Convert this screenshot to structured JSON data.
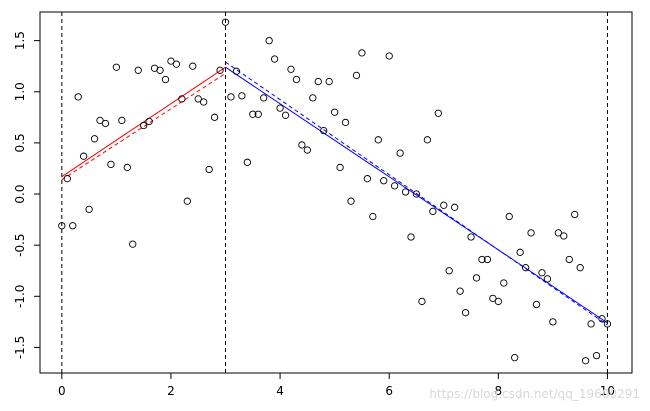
{
  "chart_data": {
    "type": "scatter",
    "xlim": [
      -0.4,
      10.45
    ],
    "ylim": [
      -1.75,
      1.78
    ],
    "x_ticks": [
      0,
      2,
      4,
      6,
      8,
      10
    ],
    "y_ticks": [
      -1.5,
      -1.0,
      -0.5,
      0.0,
      0.5,
      1.0,
      1.5
    ],
    "y_tick_labels": [
      "-1.5",
      "-1.0",
      "-0.5",
      "0.0",
      "0.5",
      "1.0",
      "1.5"
    ],
    "grid": false,
    "vlines": [
      {
        "x": 0,
        "style": "dashed",
        "color": "#000000"
      },
      {
        "x": 3,
        "style": "dashed",
        "color": "#000000"
      },
      {
        "x": 10,
        "style": "dashed",
        "color": "#000000"
      }
    ],
    "points": [
      [
        0.0,
        -0.31
      ],
      [
        0.1,
        0.15
      ],
      [
        0.2,
        -0.31
      ],
      [
        0.3,
        0.95
      ],
      [
        0.4,
        0.37
      ],
      [
        0.5,
        -0.15
      ],
      [
        0.6,
        0.54
      ],
      [
        0.7,
        0.72
      ],
      [
        0.8,
        0.69
      ],
      [
        0.9,
        0.29
      ],
      [
        1.0,
        1.24
      ],
      [
        1.1,
        0.72
      ],
      [
        1.2,
        0.26
      ],
      [
        1.3,
        -0.49
      ],
      [
        1.4,
        1.21
      ],
      [
        1.5,
        0.67
      ],
      [
        1.6,
        0.71
      ],
      [
        1.7,
        1.23
      ],
      [
        1.8,
        1.21
      ],
      [
        1.9,
        1.12
      ],
      [
        2.0,
        1.3
      ],
      [
        2.1,
        1.27
      ],
      [
        2.2,
        0.93
      ],
      [
        2.3,
        -0.07
      ],
      [
        2.4,
        1.25
      ],
      [
        2.5,
        0.93
      ],
      [
        2.6,
        0.9
      ],
      [
        2.7,
        0.24
      ],
      [
        2.8,
        0.75
      ],
      [
        2.9,
        1.21
      ],
      [
        3.0,
        1.68
      ],
      [
        3.1,
        0.95
      ],
      [
        3.2,
        1.2
      ],
      [
        3.3,
        0.96
      ],
      [
        3.4,
        0.31
      ],
      [
        3.5,
        0.78
      ],
      [
        3.6,
        0.78
      ],
      [
        3.7,
        0.94
      ],
      [
        3.8,
        1.5
      ],
      [
        3.9,
        1.32
      ],
      [
        4.0,
        0.84
      ],
      [
        4.1,
        0.77
      ],
      [
        4.2,
        1.22
      ],
      [
        4.3,
        1.12
      ],
      [
        4.4,
        0.48
      ],
      [
        4.5,
        0.43
      ],
      [
        4.6,
        0.94
      ],
      [
        4.7,
        1.1
      ],
      [
        4.8,
        0.62
      ],
      [
        4.9,
        1.1
      ],
      [
        5.0,
        0.8
      ],
      [
        5.1,
        0.26
      ],
      [
        5.2,
        0.7
      ],
      [
        5.3,
        -0.07
      ],
      [
        5.4,
        1.16
      ],
      [
        5.5,
        1.38
      ],
      [
        5.6,
        0.15
      ],
      [
        5.7,
        -0.22
      ],
      [
        5.8,
        0.53
      ],
      [
        5.9,
        0.13
      ],
      [
        6.0,
        1.35
      ],
      [
        6.1,
        0.08
      ],
      [
        6.2,
        0.4
      ],
      [
        6.3,
        0.02
      ],
      [
        6.4,
        -0.42
      ],
      [
        6.5,
        0.0
      ],
      [
        6.6,
        -1.05
      ],
      [
        6.7,
        0.53
      ],
      [
        6.8,
        -0.17
      ],
      [
        6.9,
        0.79
      ],
      [
        7.0,
        -0.11
      ],
      [
        7.1,
        -0.75
      ],
      [
        7.2,
        -0.13
      ],
      [
        7.3,
        -0.95
      ],
      [
        7.4,
        -1.16
      ],
      [
        7.5,
        -0.42
      ],
      [
        7.6,
        -0.82
      ],
      [
        7.7,
        -0.64
      ],
      [
        7.8,
        -0.64
      ],
      [
        7.9,
        -1.02
      ],
      [
        8.0,
        -1.05
      ],
      [
        8.1,
        -0.87
      ],
      [
        8.2,
        -0.22
      ],
      [
        8.3,
        -1.6
      ],
      [
        8.4,
        -0.57
      ],
      [
        8.5,
        -0.72
      ],
      [
        8.6,
        -0.38
      ],
      [
        8.7,
        -1.08
      ],
      [
        8.8,
        -0.77
      ],
      [
        8.9,
        -0.83
      ],
      [
        9.0,
        -1.25
      ],
      [
        9.1,
        -0.38
      ],
      [
        9.2,
        -0.41
      ],
      [
        9.3,
        -0.64
      ],
      [
        9.4,
        -0.2
      ],
      [
        9.5,
        -0.72
      ],
      [
        9.6,
        -1.63
      ],
      [
        9.7,
        -1.27
      ],
      [
        9.8,
        -1.58
      ],
      [
        9.9,
        -1.22
      ],
      [
        10.0,
        -1.27
      ]
    ],
    "lines": [
      {
        "color": "#ff0000",
        "style": "solid",
        "x": [
          0,
          3
        ],
        "y": [
          0.17,
          1.24
        ]
      },
      {
        "color": "#ff0000",
        "style": "dashed",
        "x": [
          0,
          3
        ],
        "y": [
          0.14,
          1.18
        ]
      },
      {
        "color": "#0000ff",
        "style": "solid",
        "x": [
          3,
          10
        ],
        "y": [
          1.24,
          -1.26
        ]
      },
      {
        "color": "#0000ff",
        "style": "dashed",
        "x": [
          3,
          10
        ],
        "y": [
          1.29,
          -1.28
        ]
      }
    ]
  },
  "watermark": "https://blog.csdn.net/qq_19600291"
}
